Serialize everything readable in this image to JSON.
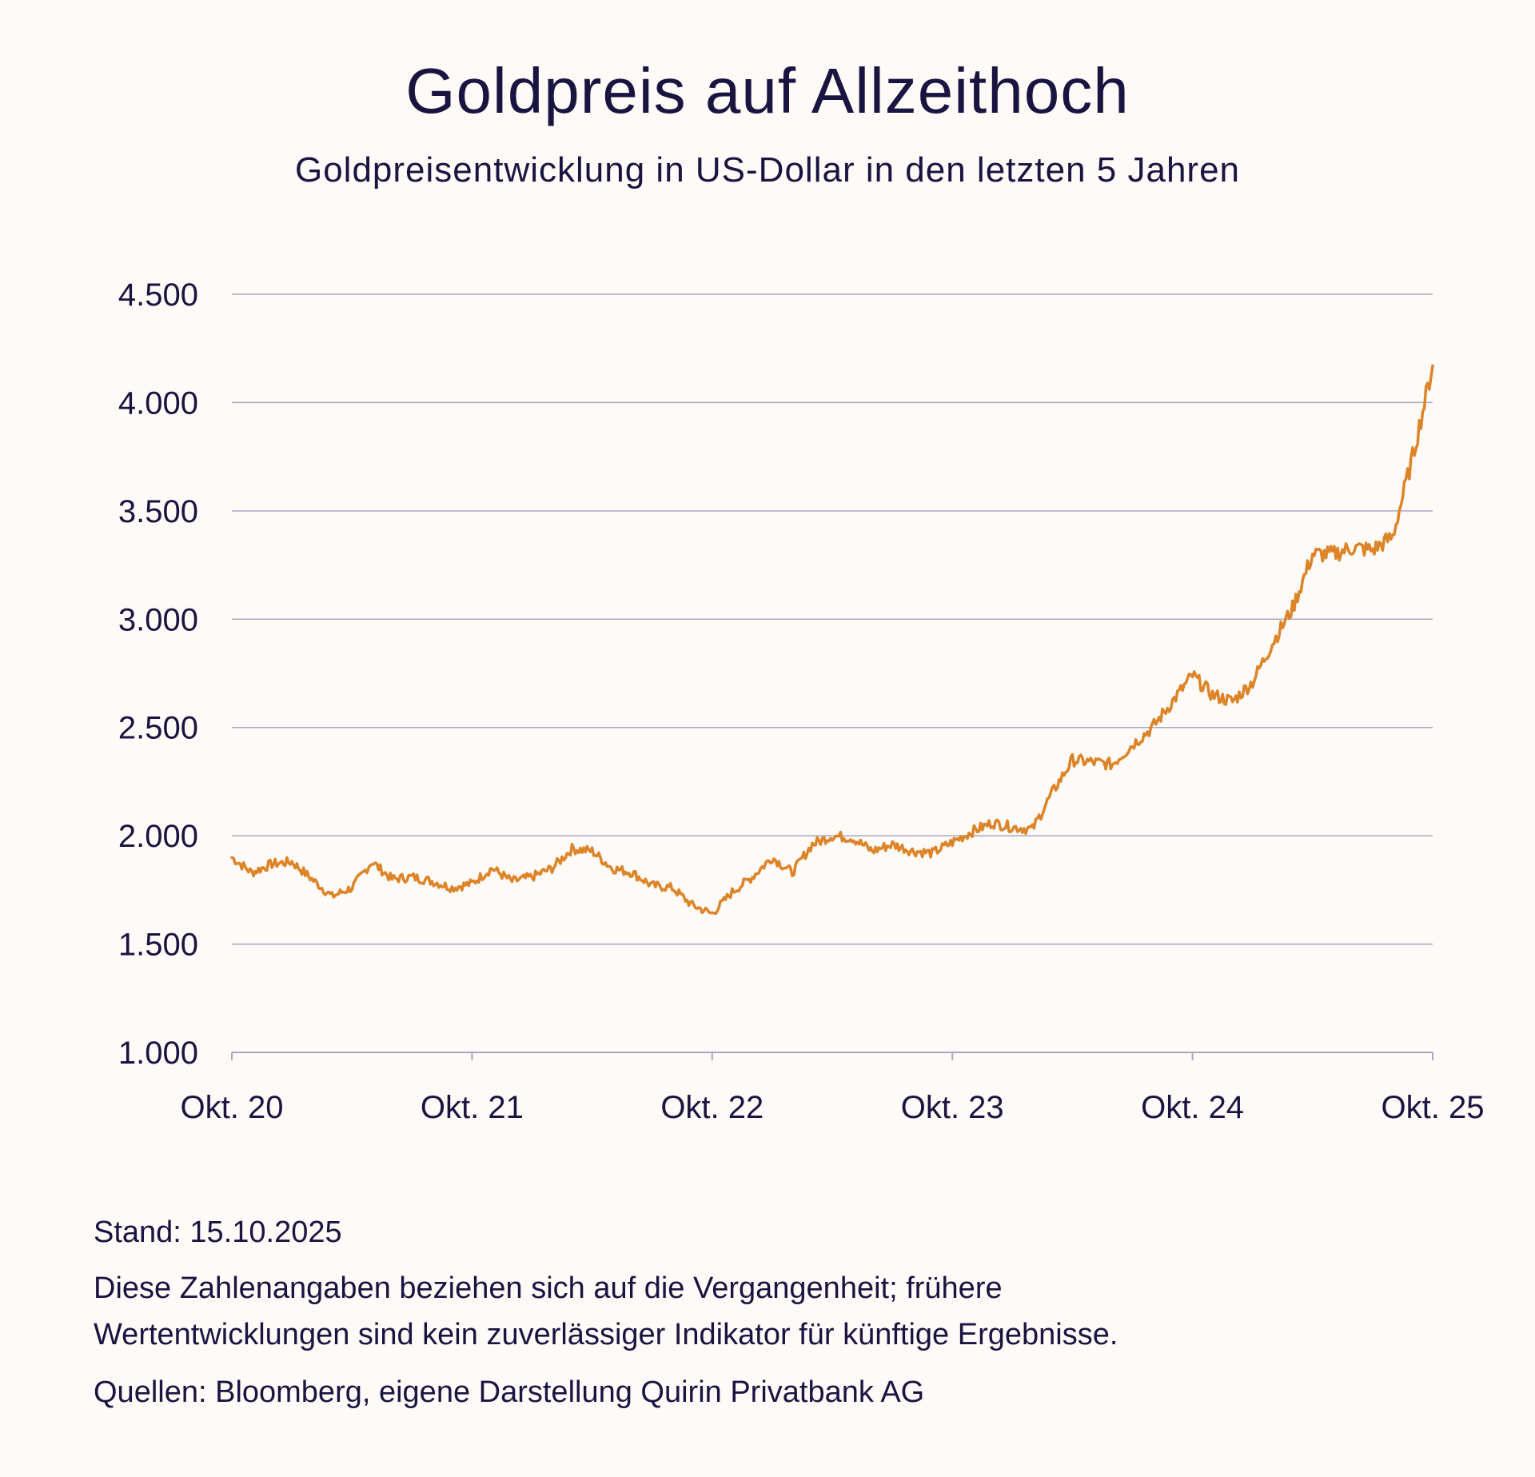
{
  "header": {
    "title": "Goldpreis auf Allzeithoch",
    "subtitle": "Goldpreisentwicklung in US-Dollar in den letzten 5 Jahren"
  },
  "footer": {
    "stand": "Stand: 15.10.2025",
    "disclaimer_line1": "Diese Zahlenangaben beziehen sich auf die Vergangenheit; frühere",
    "disclaimer_line2": "Wertentwicklungen sind kein zuverlässiger Indikator für künftige Ergebnisse.",
    "sources": "Quellen: Bloomberg, eigene Darstellung Quirin Privatbank AG"
  },
  "colors": {
    "line": "#dc8427",
    "grid": "#a9a6c0",
    "text": "#1a1440",
    "background": "#fdfaf7"
  },
  "chart_data": {
    "type": "line",
    "title": "Goldpreis auf Allzeithoch",
    "subtitle": "Goldpreisentwicklung in US-Dollar in den letzten 5 Jahren",
    "xlabel": "",
    "ylabel": "",
    "ylim": [
      1000,
      4500
    ],
    "yticks": [
      1000,
      1500,
      2000,
      2500,
      3000,
      3500,
      4000,
      4500
    ],
    "ytick_labels": [
      "1.000",
      "1.500",
      "2.000",
      "2.500",
      "3.000",
      "3.500",
      "4.000",
      "4.500"
    ],
    "xlim": [
      "2020-10",
      "2025-10"
    ],
    "xticks": [
      "2020-10",
      "2021-10",
      "2022-10",
      "2023-10",
      "2024-10",
      "2025-10"
    ],
    "xtick_labels": [
      "Okt. 20",
      "Okt. 21",
      "Okt. 22",
      "Okt. 23",
      "Okt. 24",
      "Okt. 25"
    ],
    "grid": "horizontal",
    "legend": "none",
    "series": [
      {
        "x": [
          "2020-10",
          "2020-11",
          "2020-12",
          "2021-01",
          "2021-02",
          "2021-03",
          "2021-04",
          "2021-05",
          "2021-06",
          "2021-07",
          "2021-08",
          "2021-09",
          "2021-10",
          "2021-11",
          "2021-12",
          "2022-01",
          "2022-02",
          "2022-03",
          "2022-04",
          "2022-05",
          "2022-06",
          "2022-07",
          "2022-08",
          "2022-09",
          "2022-10",
          "2022-11",
          "2022-12",
          "2023-01",
          "2023-02",
          "2023-03",
          "2023-04",
          "2023-05",
          "2023-06",
          "2023-07",
          "2023-08",
          "2023-09",
          "2023-10",
          "2023-11",
          "2023-12",
          "2024-01",
          "2024-02",
          "2024-03",
          "2024-04",
          "2024-05",
          "2024-06",
          "2024-07",
          "2024-08",
          "2024-09",
          "2024-10",
          "2024-11",
          "2024-12",
          "2025-01",
          "2025-02",
          "2025-03",
          "2025-04",
          "2025-05",
          "2025-06",
          "2025-07",
          "2025-08",
          "2025-09",
          "2025-10"
        ],
        "values": [
          1900,
          1830,
          1870,
          1880,
          1800,
          1720,
          1760,
          1880,
          1800,
          1810,
          1790,
          1760,
          1780,
          1850,
          1790,
          1810,
          1850,
          1940,
          1930,
          1850,
          1830,
          1770,
          1760,
          1680,
          1640,
          1740,
          1810,
          1900,
          1830,
          1960,
          2000,
          1990,
          1930,
          1960,
          1930,
          1920,
          1970,
          2020,
          2060,
          2040,
          2030,
          2200,
          2350,
          2340,
          2330,
          2420,
          2500,
          2620,
          2740,
          2650,
          2620,
          2710,
          2890,
          3050,
          3300,
          3300,
          3330,
          3320,
          3380,
          3750,
          4170
        ]
      }
    ]
  }
}
